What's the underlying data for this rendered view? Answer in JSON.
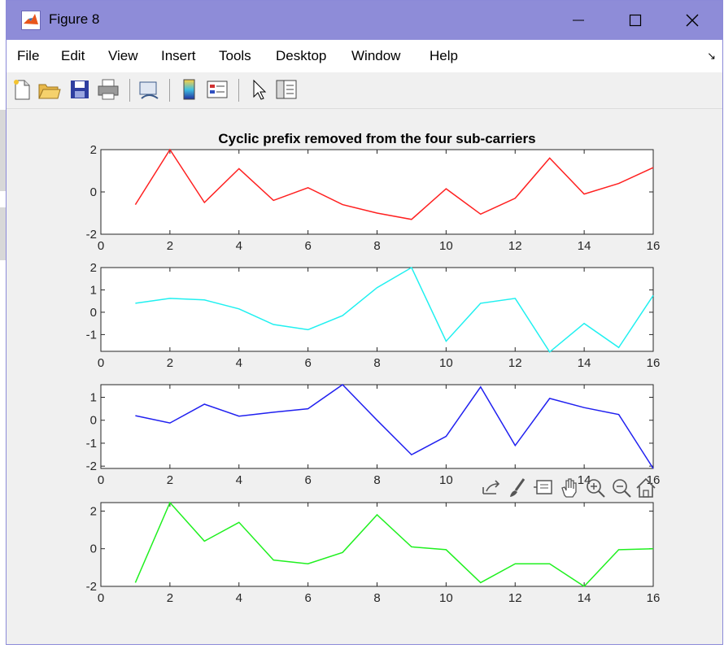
{
  "window": {
    "title": "Figure 8",
    "minimize_glyph": "—",
    "close_glyph": "✕"
  },
  "menu": [
    "File",
    "Edit",
    "View",
    "Insert",
    "Tools",
    "Desktop",
    "Window",
    "Help"
  ],
  "toolbar_icons": [
    "new-figure-icon",
    "open-file-icon",
    "save-icon",
    "print-icon",
    "link-plot-icon",
    "colorbar-icon",
    "legend-icon",
    "edit-plot-arrow-icon",
    "property-inspector-icon"
  ],
  "axes_toolbar_icons": [
    "export-icon",
    "brush-icon",
    "data-tips-icon",
    "pan-icon",
    "zoom-in-icon",
    "zoom-out-icon",
    "home-icon"
  ],
  "colors": {
    "series": [
      "#ff2020",
      "#20f0f0",
      "#2020f0",
      "#20f020"
    ]
  },
  "chart_data": [
    {
      "type": "line",
      "title": "Cyclic prefix removed from the four sub-carriers",
      "x": [
        1,
        2,
        3,
        4,
        5,
        6,
        7,
        8,
        9,
        10,
        11,
        12,
        13,
        14,
        15,
        16
      ],
      "values": [
        -0.6,
        2.0,
        -0.5,
        1.1,
        -0.4,
        0.2,
        -0.6,
        -1.0,
        -1.3,
        0.15,
        -1.05,
        -0.3,
        1.6,
        -0.1,
        0.4,
        1.15
      ],
      "xlim": [
        0,
        16
      ],
      "ylim": [
        -2,
        2
      ],
      "xticks": [
        "0",
        "2",
        "4",
        "6",
        "8",
        "10",
        "12",
        "14",
        "16"
      ],
      "yticks": [
        "-2",
        "0",
        "2"
      ]
    },
    {
      "type": "line",
      "title": "",
      "x": [
        1,
        2,
        3,
        4,
        5,
        6,
        7,
        8,
        9,
        10,
        11,
        12,
        13,
        14,
        15,
        16
      ],
      "values": [
        0.4,
        0.62,
        0.55,
        0.15,
        -0.55,
        -0.78,
        -0.15,
        1.1,
        2.0,
        -1.3,
        0.4,
        0.62,
        -1.78,
        -0.5,
        -1.58,
        0.75
      ],
      "xlim": [
        0,
        16
      ],
      "ylim": [
        -1.75,
        2
      ],
      "xticks": [
        "0",
        "2",
        "4",
        "6",
        "8",
        "10",
        "12",
        "14",
        "16"
      ],
      "yticks": [
        "-1",
        "0",
        "1",
        "2"
      ]
    },
    {
      "type": "line",
      "title": "",
      "x": [
        1,
        2,
        3,
        4,
        5,
        6,
        7,
        8,
        9,
        10,
        11,
        12,
        13,
        14,
        15,
        16
      ],
      "values": [
        0.2,
        -0.12,
        0.7,
        0.18,
        0.35,
        0.5,
        1.55,
        0.0,
        -1.5,
        -0.7,
        1.45,
        -1.1,
        0.95,
        0.55,
        0.25,
        -2.1
      ],
      "xlim": [
        0,
        16
      ],
      "ylim": [
        -2.1,
        1.55
      ],
      "xticks": [
        "0",
        "2",
        "4",
        "6",
        "8",
        "10",
        "",
        "14",
        "16"
      ],
      "yticks": [
        "-2",
        "-1",
        "0",
        "1"
      ]
    },
    {
      "type": "line",
      "title": "",
      "x": [
        1,
        2,
        3,
        4,
        5,
        6,
        7,
        8,
        9,
        10,
        11,
        12,
        13,
        14,
        15,
        16
      ],
      "values": [
        -1.8,
        2.45,
        0.4,
        1.4,
        -0.6,
        -0.8,
        -0.2,
        1.8,
        0.1,
        -0.05,
        -1.8,
        -0.8,
        -0.8,
        -2.0,
        -0.05,
        0.0
      ],
      "xlim": [
        0,
        16
      ],
      "ylim": [
        -2,
        2.45
      ],
      "xticks": [
        "0",
        "2",
        "4",
        "6",
        "8",
        "10",
        "12",
        "14",
        "16"
      ],
      "yticks": [
        "-2",
        "0",
        "2"
      ]
    }
  ]
}
